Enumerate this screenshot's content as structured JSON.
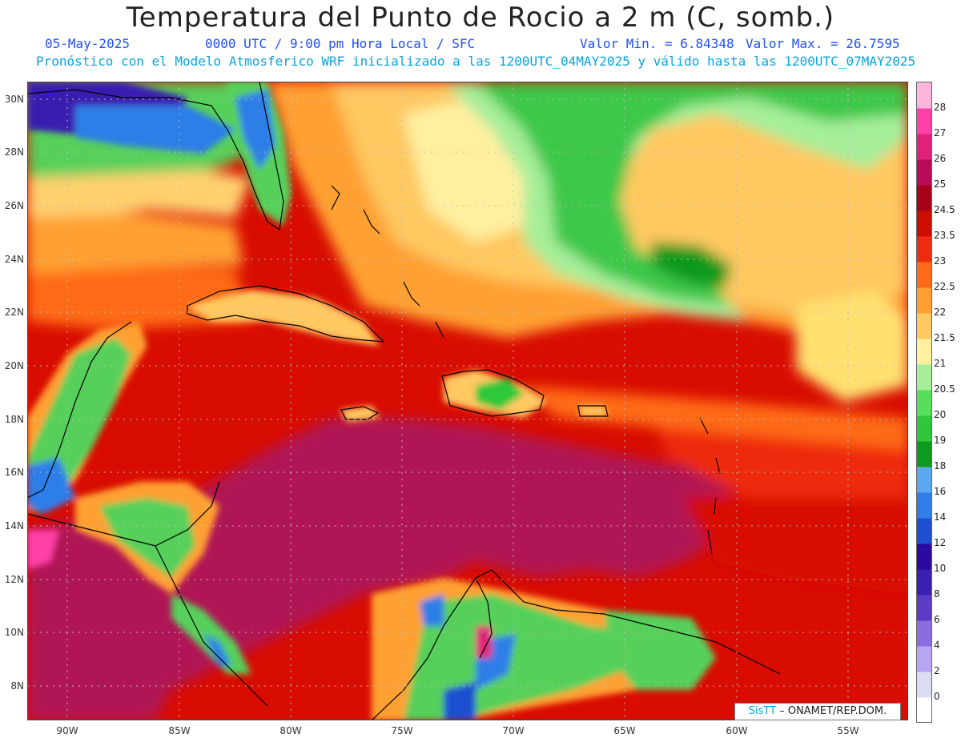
{
  "header": {
    "title": "Temperatura del Punto de Rocio a 2 m (C, somb.)",
    "date": "05-May-2025",
    "time_info": "0000 UTC / 9:00 pm Hora Local / SFC",
    "min_value": "Valor Min. = 6.84348",
    "max_value": "Valor Max. = 26.7595",
    "forecast_info": "Pronóstico con el Modelo Atmosferico WRF inicializado a las 1200UTC_04MAY2025 y válido hasta las  1200UTC_07MAY2025"
  },
  "axes": {
    "lat_labels": [
      "30N",
      "28N",
      "26N",
      "24N",
      "22N",
      "20N",
      "18N",
      "16N",
      "14N",
      "12N",
      "10N",
      "8N"
    ],
    "lon_labels": [
      "90W",
      "85W",
      "80W",
      "75W",
      "70W",
      "65W",
      "60W",
      "55W"
    ]
  },
  "colorbar": {
    "levels": [
      "0",
      "2",
      "4",
      "6",
      "8",
      "10",
      "12",
      "14",
      "16",
      "18",
      "19",
      "20",
      "20.5",
      "21",
      "21.5",
      "22",
      "22.5",
      "23",
      "23.5",
      "24.5",
      "25",
      "26",
      "27",
      "28"
    ],
    "colors": [
      "#ffffff",
      "#dcdcf5",
      "#b7a5f2",
      "#8a6ee0",
      "#5a3cc8",
      "#3a1fb0",
      "#2a0aa0",
      "#1e4fd0",
      "#2f7ee8",
      "#5aa8f2",
      "#0e9a1e",
      "#2ec83a",
      "#56e05a",
      "#a6ee9a",
      "#fff0a0",
      "#ffc860",
      "#ffa030",
      "#ff6a18",
      "#ee2c10",
      "#cc0e00",
      "#a8001a",
      "#b80a55",
      "#e0207a",
      "#ff40a8",
      "#ffb4dc"
    ]
  },
  "credit": {
    "logo": "SisTT",
    "text": "– ONAMET/REP.DOM."
  },
  "colors": {
    "title": "#222222",
    "subtitle": "#1f4fff",
    "forecast": "#0aa3e0",
    "sea_main": "#b01455",
    "coast": "#000000"
  }
}
